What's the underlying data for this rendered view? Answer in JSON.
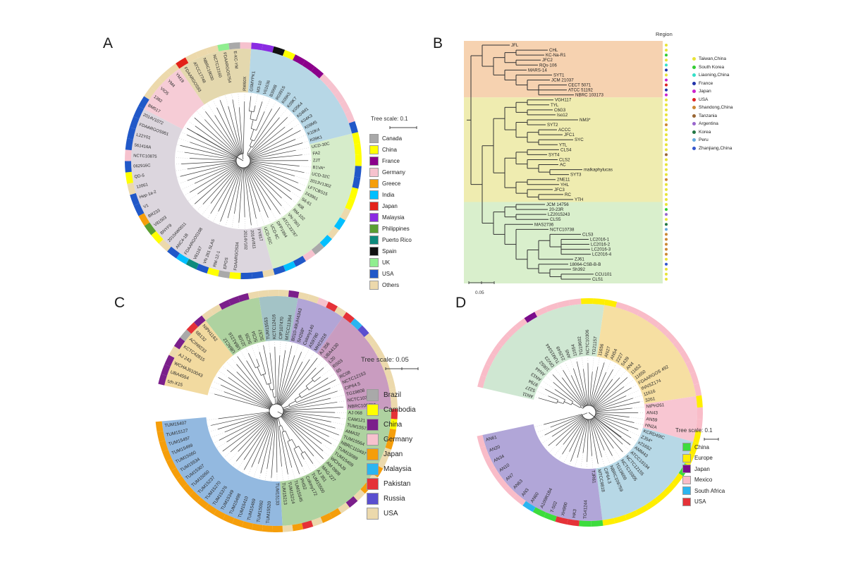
{
  "panels": {
    "A": {
      "letter": "A",
      "tree_scale": "Tree scale: 0.1",
      "legend": [
        {
          "label": "Canada",
          "color": "#a9a9a9"
        },
        {
          "label": "China",
          "color": "#ffff00"
        },
        {
          "label": "France",
          "color": "#8b008b"
        },
        {
          "label": "Germany",
          "color": "#f6c2ce"
        },
        {
          "label": "Greece",
          "color": "#f59e0b"
        },
        {
          "label": "India",
          "color": "#00bfff"
        },
        {
          "label": "Japan",
          "color": "#e32219"
        },
        {
          "label": "Malaysia",
          "color": "#8a2be2"
        },
        {
          "label": "Philippines",
          "color": "#5a9e32"
        },
        {
          "label": "Puerto Rico",
          "color": "#0e8a7d"
        },
        {
          "label": "Spain",
          "color": "#111111"
        },
        {
          "label": "UK",
          "color": "#90ee90"
        },
        {
          "label": "USA",
          "color": "#2158c8"
        },
        {
          "label": "Others",
          "color": "#ecd9ac"
        }
      ],
      "sectors": [
        {
          "fill": "#b7d7e6",
          "tips": [
            "GSMYPK1",
            "M3-10",
            "V61636",
            "B399B",
            "R0391S",
            "K09K5",
            "K09K7",
            "K05K4",
            "K04M1",
            "K04K3",
            "K09M5",
            "K10K4",
            "K09K1"
          ],
          "ring": [
            "#8a2be2",
            "#8a2be2",
            "#111111",
            "#ffff00",
            "#8b008b",
            "#8b008b",
            "#8b008b",
            "#f6c2ce",
            "#f6c2ce",
            "#f6c2ce",
            "#f6c2ce",
            "#f6c2ce",
            "#2158c8"
          ]
        },
        {
          "fill": "#d6ecca",
          "tips": [
            "UCD-30C",
            "FA2",
            "ZJT",
            "B1VA*",
            "UCD-32C",
            "2013V1302",
            "LFTCBS15",
            "243961",
            "S6-61",
            "408",
            "RM-102",
            "VN-7901",
            "ATCC33787",
            "DFP1994",
            "UCD-9C",
            "UCD-50C"
          ],
          "ring": [
            "#ffff00",
            "#ffff00",
            "#ffff00",
            "#2158c8",
            "#2158c8",
            "#ffff00",
            "#ffff00",
            "#ecd9ac",
            "#00bfff",
            "#ecd9ac",
            "#00bfff",
            "#a9a9a9",
            "#f6c2ce",
            "#2158c8",
            "#00bfff",
            "#2158c8"
          ]
        },
        {
          "fill": "#dcd6de",
          "tips": [
            "FY817",
            "2014V811",
            "2014V102",
            "FDAARGOS34",
            "EPGS",
            "RM-12-1",
            "VN 261 SLAS",
            "V81167",
            "FDAARGOS108",
            "ANC4-1B",
            "2010AW0011",
            "BNYF9",
            "V81503",
            "BR233",
            "V1",
            "Hep-1a-2",
            "12061",
            "QD-5",
            "062916C",
            "NCTC10875",
            "561416A",
            "L22Y01",
            "FDAARGOS951",
            "2014V1072"
          ],
          "ring": [
            "#ecd9ac",
            "#2158c8",
            "#2158c8",
            "#ffff00",
            "#a9a9a9",
            "#ffff00",
            "#2158c8",
            "#0e8a7d",
            "#00bfff",
            "#2158c8",
            "#ecd9ac",
            "#ffff00",
            "#5a9e32",
            "#f59e0b",
            "#2158c8",
            "#2158c8",
            "#ecd9ac",
            "#ffff00",
            "#2158c8",
            "#f6c2ce",
            "#2158c8",
            "#2158c8",
            "#2158c8",
            "#2158c8"
          ]
        },
        {
          "fill": "#f6ccd6",
          "tips": [
            "BM517",
            "1382",
            "VIO5",
            "YM4",
            "YM19"
          ],
          "ring": [
            "#2158c8",
            "#ecd9ac",
            "#ecd9ac",
            "#ecd9ac",
            "#ecd9ac"
          ]
        },
        {
          "fill": "#e4d8ae",
          "tips": [
            "FDAARGOS93",
            "ATCC17748",
            "NBRC19030",
            "NCTC12160",
            "FDAARGOS754",
            "E-KC-YM",
            "RW60X"
          ],
          "ring": [
            "#e32219",
            "#ecd9ac",
            "#ecd9ac",
            "#ecd9ac",
            "#90ee90",
            "#a9a9a9",
            "#f6c2ce"
          ]
        }
      ]
    },
    "B": {
      "letter": "B",
      "region_title": "Region",
      "scale_label": "0.05",
      "band_colors": [
        "#f6d2b0",
        "#efecb0",
        "#d9efcc"
      ],
      "band_tip_counts": [
        11,
        21,
        16
      ],
      "tree": [
        [
          "JFL",
          [
            [
              [
                "CHL",
                "KC-Na-R1"
              ],
              [
                "JFC2",
                "RQs-106"
              ]
            ],
            [
              "MARS-14",
              [
                "SYT1",
                [
                  "JCM 21037",
                  [
                    "CECT 5071",
                    "ATCC 51192",
                    "NBRC 103173"
                  ]
                ]
              ]
            ]
          ]
        ],
        [
          [
            [
              [
                [
                  "VGH117",
                  "TYL"
                ],
                [
                  "C6G3",
                  "Iso12"
                ]
              ],
              [
                [
                  "NM3*",
                  "SYT2"
                ],
                [
                  [
                    "ACCC",
                    "JFC1"
                  ],
                  [
                    "SYC",
                    "YTL"
                  ]
                ]
              ]
            ],
            [
              [
                [
                  "CLS4",
                  "SYT4"
                ],
                [
                  "CLS2",
                  [
                    "AC",
                    [
                      "malkaphylucas",
                      "SYT3"
                    ]
                  ]
                ]
              ],
              [
                [
                  "2NE11",
                  "YHL"
                ],
                [
                  "JFC3",
                  [
                    "RC",
                    "YTH"
                  ]
                ]
              ]
            ]
          ],
          [
            [
              [
                "JCM 14756",
                "20-23R"
              ],
              [
                "LZ2015243",
                "CLS5"
              ]
            ],
            [
              "MAS2736",
              [
                "NCTC10738",
                [
                  [
                    [
                      "CLS3",
                      [
                        "LC2016-1",
                        "LC2016-2",
                        "LC2016-3",
                        "LC2016-4"
                      ]
                    ],
                    "ZJ61"
                  ],
                  [
                    "18064-CSB-B-B",
                    [
                      "Sh392",
                      [
                        "CCU101",
                        "CLS1"
                      ]
                    ]
                  ]
                ]
              ]
            ]
          ]
        ]
      ],
      "dots": [
        "#e8e337",
        "#e8e337",
        "#33cc33",
        "#e8e337",
        "#35e0c8",
        "#2233aa",
        "#e8e337",
        "#cc22cc",
        "#dd2222",
        "#2233aa",
        "#cc22cc",
        "#e8e337",
        "#e8e337",
        "#e8e337",
        "#e8e337",
        "#e8e337",
        "#cc8833",
        "#e8e337",
        "#e8e337",
        "#e8e337",
        "#e8e337",
        "#e8e337",
        "#996633",
        "#e8e337",
        "#e8e337",
        "#e8e337",
        "#e8e337",
        "#cc8833",
        "#e8e337",
        "#e8e337",
        "#e8e337",
        "#e8e337",
        "#e8e337",
        "#33cc33",
        "#9966cc",
        "#e8e337",
        "#227744",
        "#66aadd",
        "#cc8833",
        "#cc8833",
        "#cc8833",
        "#cc8833",
        "#cc8833",
        "#e8e337",
        "#3355cc",
        "#e8e337",
        "#e8e337",
        "#e8e337"
      ],
      "legend": [
        {
          "label": "Taiwan,China",
          "color": "#e8e337"
        },
        {
          "label": "South Korea",
          "color": "#33cc33"
        },
        {
          "label": "Liaoning,China",
          "color": "#35e0c8"
        },
        {
          "label": "France",
          "color": "#2233aa"
        },
        {
          "label": "Japan",
          "color": "#cc22cc"
        },
        {
          "label": "USA",
          "color": "#dd2222"
        },
        {
          "label": "Shandong,China",
          "color": "#cc8833"
        },
        {
          "label": "Tanzania",
          "color": "#996633"
        },
        {
          "label": "Argentina",
          "color": "#9966cc"
        },
        {
          "label": "Korea",
          "color": "#227744"
        },
        {
          "label": "Peru",
          "color": "#66aadd"
        },
        {
          "label": "Zhanjiang,China",
          "color": "#3355cc"
        }
      ]
    },
    "C": {
      "letter": "C",
      "tree_scale": "Tree scale: 0.05",
      "legend": [
        {
          "label": "Brazil",
          "color": "#a9a9a9"
        },
        {
          "label": "Cambodia",
          "color": "#ffff00"
        },
        {
          "label": "China",
          "color": "#7b1f8b"
        },
        {
          "label": "Germany",
          "color": "#f6c2ce"
        },
        {
          "label": "Japan",
          "color": "#f59e0b"
        },
        {
          "label": "Malaysia",
          "color": "#2bb5f0"
        },
        {
          "label": "Pakistan",
          "color": "#e53238"
        },
        {
          "label": "Russia",
          "color": "#5a4fcf"
        },
        {
          "label": "USA",
          "color": "#ecd9ac"
        }
      ],
      "sectors": [
        {
          "fill": "#aed2a0",
          "tips": [
            "UBAC12",
            "UBA1216",
            "JZ108",
            "SC55",
            "SC54",
            "SC57"
          ],
          "ring": [
            "#ecd9ac",
            "#ecd9ac",
            "#7b1f8b",
            "#7b1f8b",
            "#7b1f8b",
            "#ecd9ac"
          ]
        },
        {
          "fill": "#a3c3c6",
          "tips": [
            "TUM15553",
            "KCTC12416",
            "CIP107470",
            "MTCC11364"
          ],
          "ring": [
            "#ecd9ac",
            "#ecd9ac",
            "#ecd9ac",
            "#7b1f8b"
          ]
        },
        {
          "fill": "#b2a5d6",
          "tips": [
            "B010-49UH4343",
            "SH208*",
            "Colony140",
            "AS9780",
            "MH21018"
          ],
          "ring": [
            "#ecd9ac",
            "#ecd9ac",
            "#f6c2ce",
            "#e53238",
            "#ecd9ac"
          ]
        },
        {
          "fill": "#c99cc0",
          "tips": [
            "AJ 356",
            "UBA4130",
            "L20",
            "RS03",
            "65",
            "RC08",
            "NCTC12153",
            "CIP64.5",
            "TG19608",
            "NCTC10307",
            "NBRC109759"
          ],
          "ring": [
            "#e53238",
            "#2bb5f0",
            "#5a4fcf",
            "#ecd9ac",
            "#ecd9ac",
            "#ecd9ac",
            "#ecd9ac",
            "#ecd9ac",
            "#ecd9ac",
            "#ecd9ac",
            "#ecd9ac"
          ]
        },
        {
          "fill": "#aed2a0",
          "tips": [
            "AJ 068",
            "CAM121",
            "TUM15570",
            "AMA32",
            "TUM15564",
            "NBRC110497",
            "TUM15089",
            "TUM15409",
            "WCHAJ9",
            "AM 0908",
            "MAG-227",
            "AJ 351",
            "TUM15500",
            "Colony172",
            "PHS2",
            "TUM15545",
            "TUM15214",
            "TUM15213"
          ],
          "ring": [
            "#e53238",
            "#ffff00",
            "#f59e0b",
            "#f59e0b",
            "#ecd9ac",
            "#ecd9ac",
            "#f59e0b",
            "#ecd9ac",
            "#f59e0b",
            "#ecd9ac",
            "#7b1f8b",
            "#ecd9ac",
            "#f59e0b",
            "#f59e0b",
            "#ecd9ac",
            "#e53238",
            "#f59e0b",
            "#ecd9ac"
          ]
        },
        {
          "fill": "#93b9e0",
          "tips": [
            "TUM15133",
            "TUM15520",
            "TUM15092",
            "TUM15469",
            "TUM15410",
            "TUM15498",
            "TUM15349",
            "TUM15376",
            "TUM15270",
            "TUM15237",
            "TUM15050",
            "TUM15307",
            "TUM15534",
            "TUM15060",
            "TUM15499",
            "TUM15497",
            "TUM15127",
            "TUM15407"
          ],
          "ring": [
            "#f59e0b",
            "#f59e0b",
            "#f59e0b",
            "#f59e0b",
            "#f59e0b",
            "#f59e0b",
            "#f59e0b",
            "#f59e0b",
            "#f59e0b",
            "#f59e0b",
            "#f59e0b",
            "#f59e0b",
            "#f59e0b",
            "#f59e0b",
            "#f59e0b",
            "#f59e0b",
            "#f59e0b",
            "#f59e0b"
          ]
        },
        {
          "fill": "#f2daa0",
          "tips": [
            "tzh-X15",
            "UBA4554",
            "WCHAJ010043",
            "AJ 243",
            "KCTC42815",
            "ACIN9233",
            "6B132",
            "NIPH1162"
          ],
          "ring": [
            "#7b1f8b",
            "#7b1f8b",
            "#7b1f8b",
            "#ecd9ac",
            "#7b1f8b",
            "#a9a9a9",
            "#e53238",
            "#7b1f8b"
          ]
        }
      ]
    },
    "D": {
      "letter": "D",
      "tree_scale": "Tree scale: 0.1",
      "legend": [
        {
          "label": "China",
          "color": "#3ddc3d"
        },
        {
          "label": "Europe",
          "color": "#ffee00"
        },
        {
          "label": "Japan",
          "color": "#7b0d8b"
        },
        {
          "label": "Mexico",
          "color": "#f9bcc8"
        },
        {
          "label": "South Africa",
          "color": "#2bb5f0"
        },
        {
          "label": "USA",
          "color": "#e53238"
        }
      ],
      "sectors": [
        {
          "fill": "#cfe7d2",
          "tips": [
            "AN11",
            "5227",
            "9794",
            "AN13",
            "AN44",
            "10652",
            "DIV23",
            "TUM15344",
            "212649",
            "AN5",
            "11654",
            "TG19602",
            "NCTC10306",
            "TG21157"
          ],
          "ring": [
            "#f9bcc8",
            "#f9bcc8",
            "#f9bcc8",
            "#f9bcc8",
            "#f9bcc8",
            "#f9bcc8",
            "#f9bcc8",
            "#7b0d8b",
            "#f9bcc8",
            "#f9bcc8",
            "#f9bcc8",
            "#f9bcc8",
            "#ffee00",
            "#ffee00"
          ]
        },
        {
          "fill": "#f6dfa2",
          "tips": [
            "11656",
            "AN27",
            "AN54",
            "2227",
            "5439",
            "AN4",
            "11652",
            "11650",
            "FDAARGOS 492",
            "INNSZ174",
            "11616",
            "3261"
          ],
          "ring": [
            "#ffee00",
            "#f9bcc8",
            "#f9bcc8",
            "#f9bcc8",
            "#f9bcc8",
            "#f9bcc8",
            "#f9bcc8",
            "#f9bcc8",
            "#f9bcc8",
            "#f9bcc8",
            "#f9bcc8",
            "#f9bcc8"
          ]
        },
        {
          "fill": "#f8c6d2",
          "tips": [
            "NIPH261",
            "AN43",
            "AN59",
            "HN2A"
          ],
          "ring": [
            "#ffee00",
            "#f9bcc8",
            "#f9bcc8",
            "#ffee00"
          ]
        },
        {
          "fill": "#b7d8e6",
          "tips": [
            "KCRD49IC",
            "ZJ54*",
            "x21652",
            "AMM43",
            "ATCC19194",
            "NCTC12155",
            "NCTC10305",
            "TG19609",
            "NBRC109759",
            "CIP64.3",
            "MTCC9818"
          ],
          "ring": [
            "#ffee00",
            "#ffee00",
            "#3ddc3d",
            "#ffee00",
            "#ffee00",
            "#ffee00",
            "#ffee00",
            "#ffee00",
            "#ffee00",
            "#ffee00",
            "#ffee00"
          ]
        },
        {
          "fill": "#b1a6d8",
          "tips": [
            "TJR61",
            "TG41244",
            "HK3",
            "XH900",
            "T-502",
            "A109R1B4",
            "AN60",
            "AN3",
            "AN63",
            "AN7",
            "AN10",
            "AN34",
            "AN20",
            "AN61"
          ],
          "ring": [
            "#3ddc3d",
            "#3ddc3d",
            "#e53238",
            "#e53238",
            "#3ddc3d",
            "#3ddc3d",
            "#2bb5f0",
            "#f9bcc8",
            "#f9bcc8",
            "#f9bcc8",
            "#f9bcc8",
            "#f9bcc8",
            "#f9bcc8",
            "#f9bcc8"
          ]
        }
      ]
    }
  }
}
